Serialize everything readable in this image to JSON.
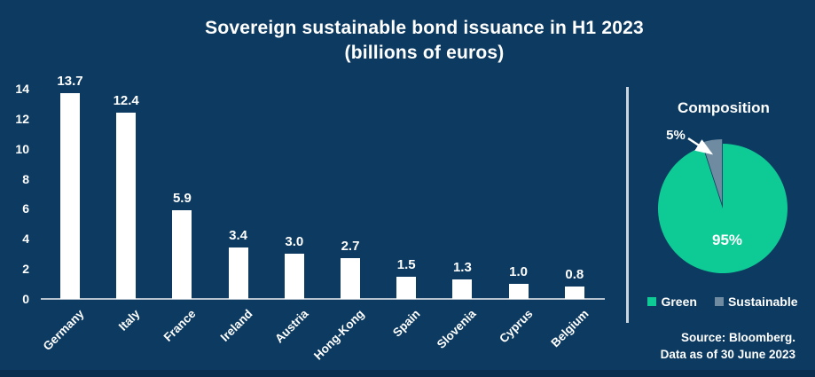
{
  "title": "Sovereign sustainable bond issuance in H1 2023",
  "subtitle": "(billions of euros)",
  "source": {
    "line1": "Source: Bloomberg.",
    "line2": "Data as of 30 June 2023"
  },
  "colors": {
    "background": "#0d3a60",
    "bar": "#ffffff",
    "green": "#0ecb96",
    "sustainable": "#6f8ba1",
    "axis": "#b6c2cd",
    "divider": "#ccd5dd",
    "text": "#ffffff"
  },
  "chart_data": [
    {
      "type": "bar",
      "title": "Sovereign sustainable bond issuance in H1 2023",
      "subtitle": "(billions of euros)",
      "categories": [
        "Germany",
        "Italy",
        "France",
        "Ireland",
        "Austria",
        "Hong-Kong",
        "Spain",
        "Slovenia",
        "Cyprus",
        "Belgium"
      ],
      "values": [
        13.7,
        12.4,
        5.9,
        3.4,
        3.0,
        2.7,
        1.5,
        1.3,
        1.0,
        0.8
      ],
      "data_labels": [
        "13.7",
        "12.4",
        "5.9",
        "3.4",
        "3.0",
        "2.7",
        "1.5",
        "1.3",
        "1.0",
        "0.8"
      ],
      "ylim": [
        0,
        14
      ],
      "ytick_step": 2,
      "grid": false,
      "bar_color": "#ffffff"
    },
    {
      "type": "pie",
      "title": "Composition",
      "labels": [
        "Green",
        "Sustainable"
      ],
      "values": [
        95,
        5
      ],
      "slice_labels": [
        "95%",
        "5%"
      ],
      "colors": [
        "#0ecb96",
        "#6f8ba1"
      ],
      "legend_position": "bottom"
    }
  ]
}
